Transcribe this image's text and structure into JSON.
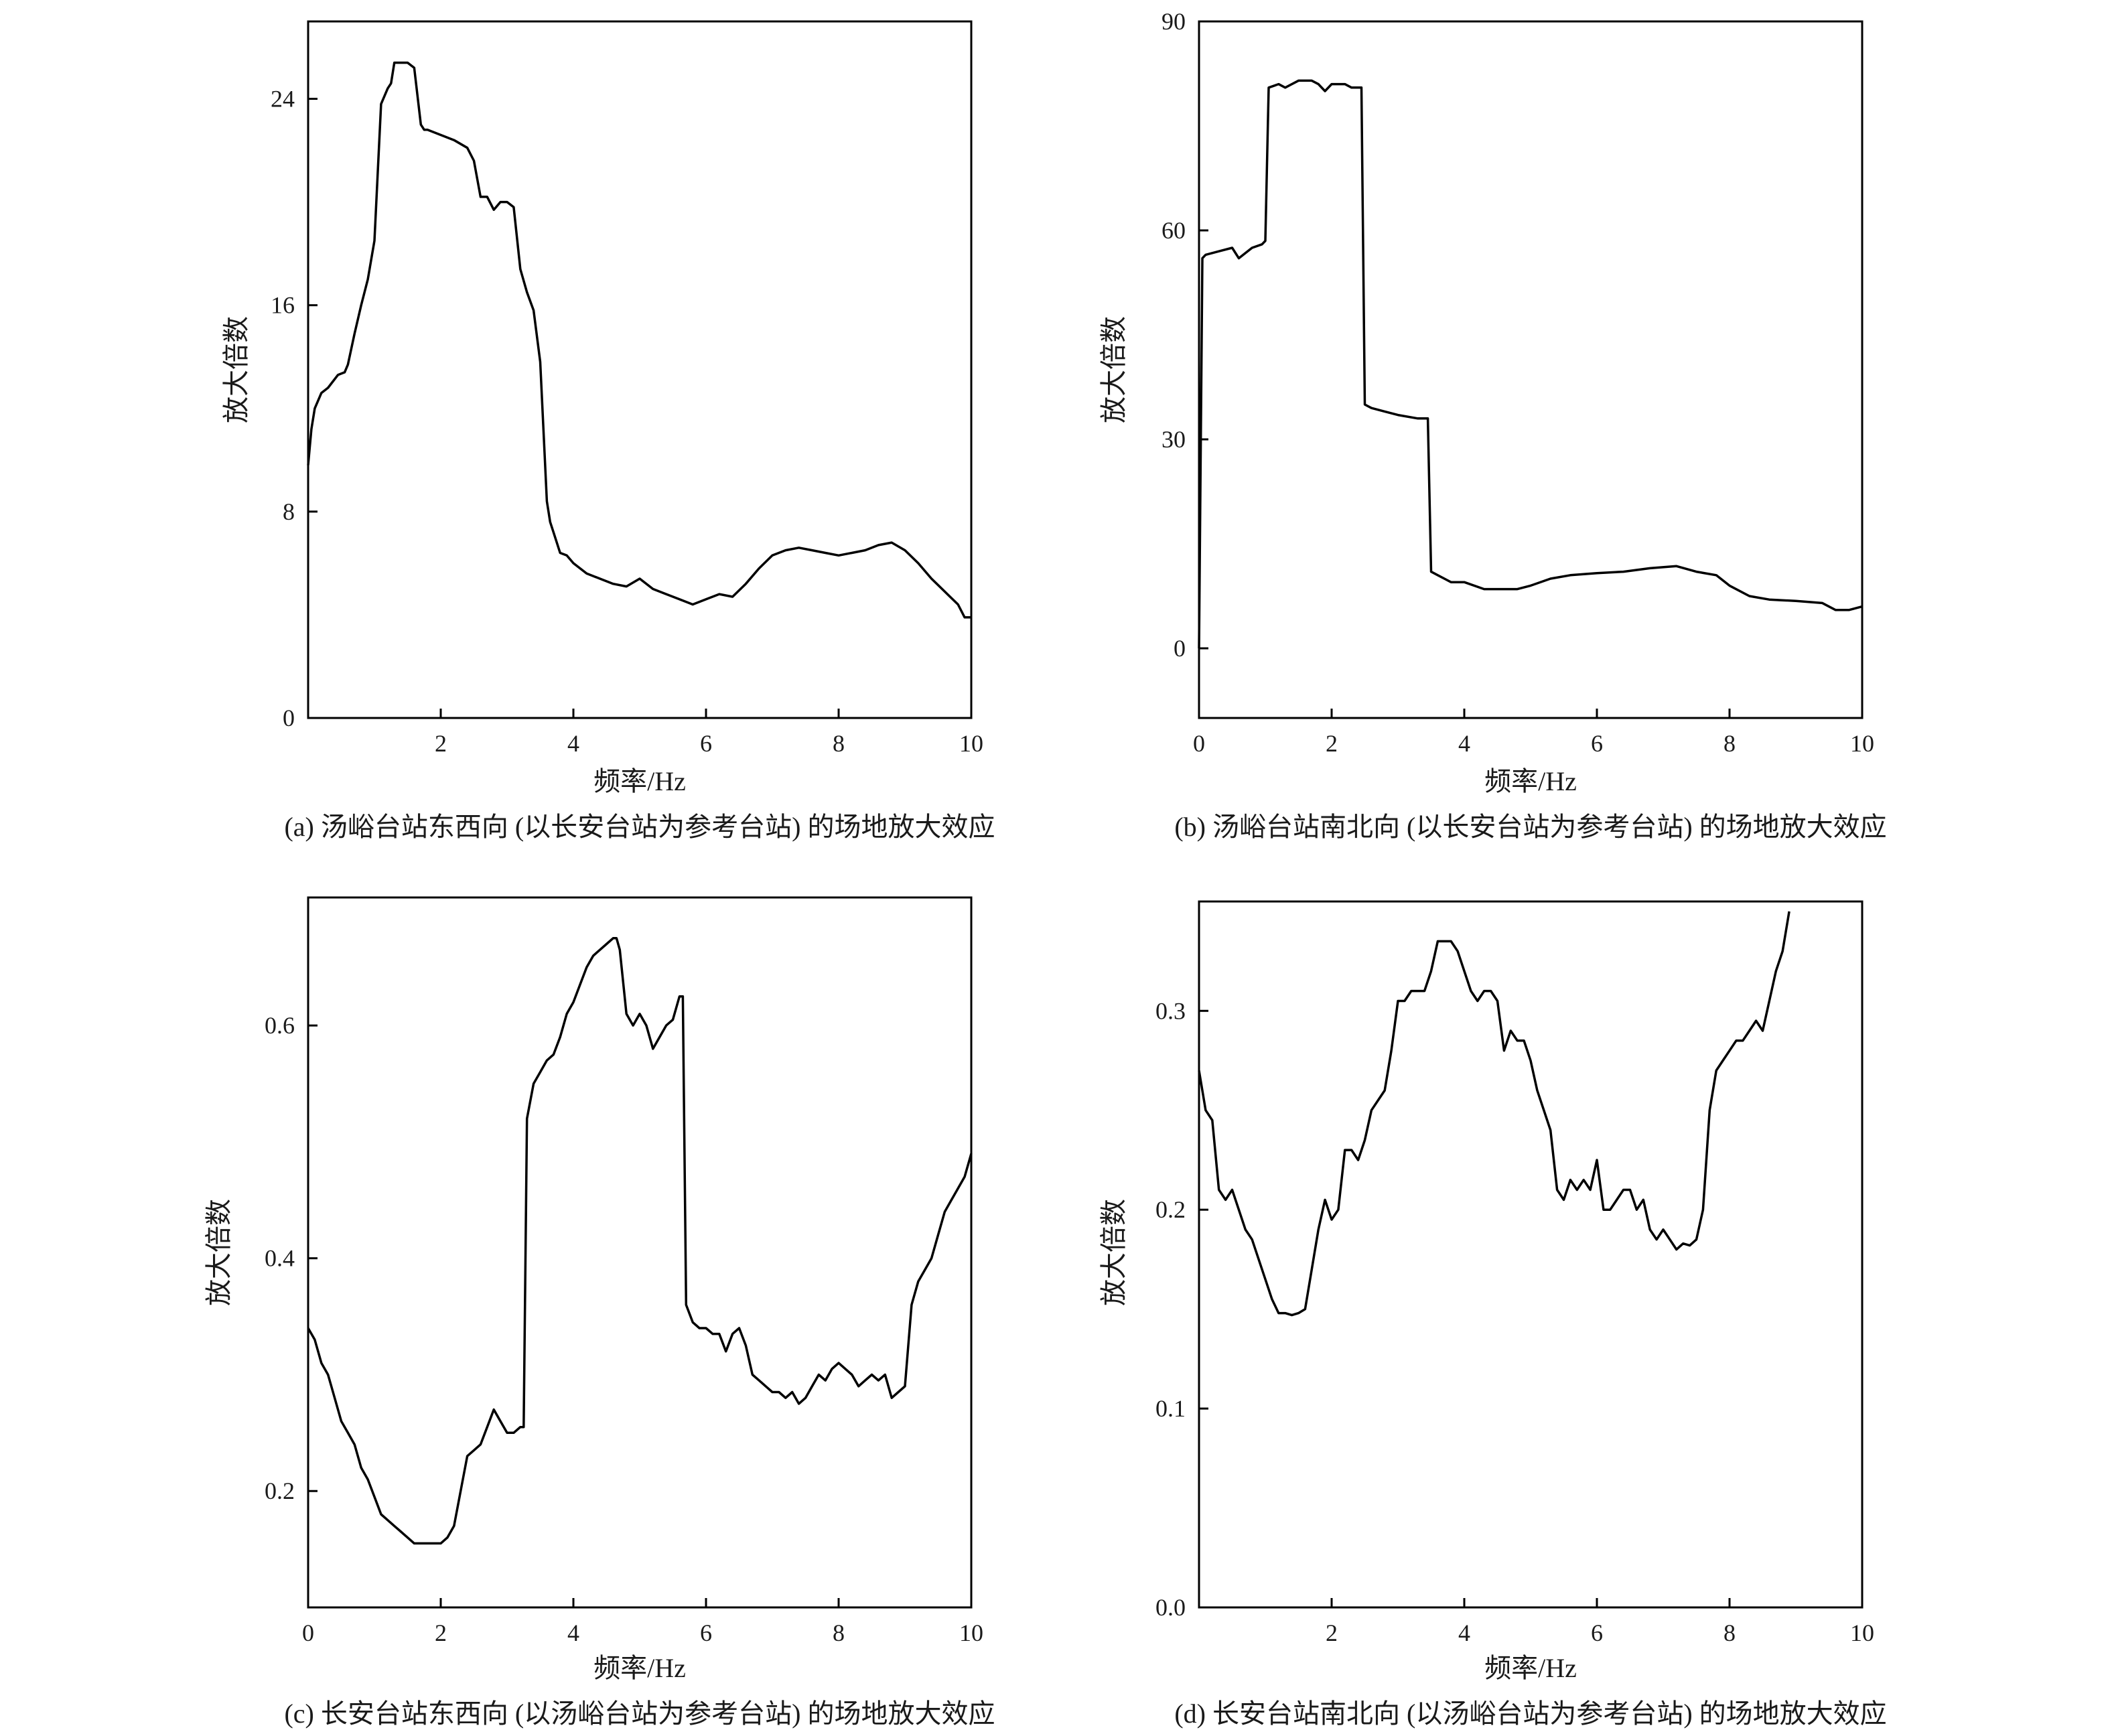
{
  "chart_data": [
    {
      "id": "a",
      "type": "line",
      "caption": "(a) 汤峪台站东西向 (以长安台站为参考台站) 的场地放大效应",
      "xlabel": "频率/Hz",
      "ylabel": "放大倍数",
      "xlim": [
        0,
        10
      ],
      "ylim": [
        0,
        27
      ],
      "xticks": [
        2,
        4,
        6,
        8,
        10
      ],
      "xtick_labels": [
        "2",
        "4",
        "6",
        "8",
        "10"
      ],
      "yticks": [
        0,
        8,
        16,
        24
      ],
      "ytick_labels": [
        "0",
        "8",
        "16",
        "24"
      ],
      "grid": false,
      "x": [
        0,
        0.05,
        0.1,
        0.2,
        0.3,
        0.45,
        0.55,
        0.6,
        0.7,
        0.8,
        0.9,
        1.0,
        1.1,
        1.2,
        1.25,
        1.3,
        1.4,
        1.5,
        1.6,
        1.7,
        1.75,
        1.8,
        2.0,
        2.2,
        2.4,
        2.5,
        2.6,
        2.7,
        2.8,
        2.9,
        3.0,
        3.1,
        3.2,
        3.3,
        3.4,
        3.5,
        3.6,
        3.65,
        3.7,
        3.8,
        3.9,
        4.0,
        4.2,
        4.4,
        4.6,
        4.8,
        5.0,
        5.2,
        5.4,
        5.6,
        5.8,
        6.0,
        6.2,
        6.4,
        6.6,
        6.8,
        7.0,
        7.2,
        7.4,
        7.6,
        7.8,
        8.0,
        8.2,
        8.4,
        8.6,
        8.8,
        9.0,
        9.2,
        9.4,
        9.6,
        9.8,
        9.9,
        10.0
      ],
      "y": [
        9.8,
        11.2,
        12.0,
        12.6,
        12.8,
        13.3,
        13.4,
        13.7,
        14.9,
        16.0,
        17.0,
        18.5,
        23.8,
        24.4,
        24.6,
        25.4,
        25.4,
        25.4,
        25.2,
        23.0,
        22.8,
        22.8,
        22.6,
        22.4,
        22.1,
        21.6,
        20.2,
        20.2,
        19.7,
        20.0,
        20.0,
        19.8,
        17.4,
        16.5,
        15.8,
        13.8,
        8.4,
        7.6,
        7.2,
        6.4,
        6.3,
        6.0,
        5.6,
        5.4,
        5.2,
        5.1,
        5.4,
        5.0,
        4.8,
        4.6,
        4.4,
        4.6,
        4.8,
        4.7,
        5.2,
        5.8,
        6.3,
        6.5,
        6.6,
        6.5,
        6.4,
        6.3,
        6.4,
        6.5,
        6.7,
        6.8,
        6.5,
        6.0,
        5.4,
        4.9,
        4.4,
        3.9,
        3.9
      ]
    },
    {
      "id": "b",
      "type": "line",
      "caption": "(b) 汤峪台站南北向 (以长安台站为参考台站) 的场地放大效应",
      "xlabel": "频率/Hz",
      "ylabel": "放大倍数",
      "xlim": [
        0,
        10
      ],
      "ylim": [
        -10,
        90
      ],
      "xticks": [
        0,
        2,
        4,
        6,
        8,
        10
      ],
      "xtick_labels": [
        "0",
        "2",
        "4",
        "6",
        "8",
        "10"
      ],
      "yticks": [
        0,
        30,
        60,
        90
      ],
      "ytick_labels": [
        "0",
        "30",
        "60",
        "90"
      ],
      "grid": false,
      "x": [
        0,
        0.05,
        0.1,
        0.3,
        0.5,
        0.6,
        0.8,
        0.95,
        1.0,
        1.05,
        1.2,
        1.3,
        1.5,
        1.7,
        1.8,
        1.9,
        2.0,
        2.2,
        2.3,
        2.45,
        2.5,
        2.6,
        2.8,
        3.0,
        3.3,
        3.45,
        3.5,
        3.6,
        3.8,
        4.0,
        4.3,
        4.5,
        4.8,
        5.0,
        5.3,
        5.6,
        6.0,
        6.4,
        6.8,
        7.2,
        7.5,
        7.8,
        8.0,
        8.3,
        8.6,
        9.0,
        9.4,
        9.6,
        9.8,
        10.0
      ],
      "y": [
        0,
        56,
        56.5,
        57.0,
        57.5,
        56.0,
        57.5,
        58.0,
        58.5,
        80.5,
        81.0,
        80.5,
        81.5,
        81.5,
        81.0,
        80.0,
        81.0,
        81.0,
        80.5,
        80.5,
        35.0,
        34.5,
        34.0,
        33.5,
        33.0,
        33.0,
        11.0,
        10.5,
        9.5,
        9.5,
        8.5,
        8.5,
        8.5,
        9.0,
        10.0,
        10.5,
        10.8,
        11.0,
        11.5,
        11.8,
        11.0,
        10.5,
        9.0,
        7.5,
        7.0,
        6.8,
        6.5,
        5.5,
        5.5,
        6.0
      ]
    },
    {
      "id": "c",
      "type": "line",
      "caption": "(c) 长安台站东西向 (以汤峪台站为参考台站) 的场地放大效应",
      "xlabel": "频率/Hz",
      "ylabel": "放大倍数",
      "xlim": [
        0,
        10
      ],
      "ylim": [
        0.1,
        0.71
      ],
      "xticks": [
        0,
        2,
        4,
        6,
        8,
        10
      ],
      "xtick_labels": [
        "0",
        "2",
        "4",
        "6",
        "8",
        "10"
      ],
      "yticks": [
        0.2,
        0.4,
        0.6
      ],
      "ytick_labels": [
        "0.2",
        "0.4",
        "0.6"
      ],
      "grid": false,
      "x": [
        0,
        0.1,
        0.2,
        0.3,
        0.4,
        0.5,
        0.6,
        0.7,
        0.8,
        0.9,
        1.0,
        1.1,
        1.2,
        1.3,
        1.4,
        1.5,
        1.6,
        1.7,
        1.8,
        1.9,
        2.0,
        2.1,
        2.2,
        2.3,
        2.4,
        2.5,
        2.6,
        2.7,
        2.8,
        2.9,
        3.0,
        3.1,
        3.2,
        3.25,
        3.3,
        3.4,
        3.5,
        3.6,
        3.7,
        3.8,
        3.9,
        4.0,
        4.1,
        4.2,
        4.3,
        4.4,
        4.5,
        4.6,
        4.65,
        4.7,
        4.8,
        4.9,
        5.0,
        5.1,
        5.2,
        5.3,
        5.4,
        5.5,
        5.6,
        5.65,
        5.7,
        5.8,
        5.9,
        6.0,
        6.1,
        6.2,
        6.3,
        6.4,
        6.5,
        6.6,
        6.7,
        6.8,
        6.9,
        7.0,
        7.1,
        7.2,
        7.3,
        7.4,
        7.5,
        7.6,
        7.7,
        7.8,
        7.9,
        8.0,
        8.1,
        8.2,
        8.3,
        8.4,
        8.5,
        8.6,
        8.7,
        8.8,
        8.9,
        9.0,
        9.1,
        9.2,
        9.3,
        9.4,
        9.5,
        9.6,
        9.7,
        9.8,
        9.9,
        10.0
      ],
      "y": [
        0.34,
        0.33,
        0.31,
        0.3,
        0.28,
        0.26,
        0.25,
        0.24,
        0.22,
        0.21,
        0.195,
        0.18,
        0.175,
        0.17,
        0.165,
        0.16,
        0.155,
        0.155,
        0.155,
        0.155,
        0.155,
        0.16,
        0.17,
        0.2,
        0.23,
        0.235,
        0.24,
        0.255,
        0.27,
        0.26,
        0.25,
        0.25,
        0.255,
        0.255,
        0.52,
        0.55,
        0.56,
        0.57,
        0.575,
        0.59,
        0.61,
        0.62,
        0.635,
        0.65,
        0.66,
        0.665,
        0.67,
        0.675,
        0.675,
        0.665,
        0.61,
        0.6,
        0.61,
        0.6,
        0.58,
        0.59,
        0.6,
        0.605,
        0.625,
        0.625,
        0.36,
        0.345,
        0.34,
        0.34,
        0.335,
        0.335,
        0.32,
        0.335,
        0.34,
        0.325,
        0.3,
        0.295,
        0.29,
        0.285,
        0.285,
        0.28,
        0.285,
        0.275,
        0.28,
        0.29,
        0.3,
        0.295,
        0.305,
        0.31,
        0.305,
        0.3,
        0.29,
        0.295,
        0.3,
        0.295,
        0.3,
        0.28,
        0.285,
        0.29,
        0.36,
        0.38,
        0.39,
        0.4,
        0.42,
        0.44,
        0.45,
        0.46,
        0.47,
        0.49
      ]
    },
    {
      "id": "d",
      "type": "line",
      "caption": "(d) 长安台站南北向 (以汤峪台站为参考台站) 的场地放大效应",
      "xlabel": "频率/Hz",
      "ylabel": "放大倍数",
      "xlim": [
        0,
        10
      ],
      "ylim": [
        0,
        0.355
      ],
      "xticks": [
        2,
        4,
        6,
        8,
        10
      ],
      "xtick_labels": [
        "2",
        "4",
        "6",
        "8",
        "10"
      ],
      "yticks": [
        0,
        0.1,
        0.2,
        0.3
      ],
      "ytick_labels": [
        "0.0",
        "0.1",
        "0.2",
        "0.3"
      ],
      "grid": false,
      "x": [
        0,
        0.1,
        0.2,
        0.3,
        0.4,
        0.5,
        0.6,
        0.7,
        0.8,
        0.9,
        1.0,
        1.1,
        1.2,
        1.3,
        1.4,
        1.5,
        1.6,
        1.7,
        1.8,
        1.9,
        2.0,
        2.1,
        2.2,
        2.3,
        2.4,
        2.5,
        2.6,
        2.7,
        2.8,
        2.9,
        3.0,
        3.1,
        3.2,
        3.3,
        3.4,
        3.5,
        3.6,
        3.7,
        3.8,
        3.9,
        4.0,
        4.1,
        4.2,
        4.3,
        4.4,
        4.5,
        4.6,
        4.7,
        4.8,
        4.9,
        5.0,
        5.1,
        5.2,
        5.3,
        5.4,
        5.5,
        5.6,
        5.7,
        5.8,
        5.9,
        6.0,
        6.1,
        6.2,
        6.3,
        6.4,
        6.5,
        6.6,
        6.7,
        6.8,
        6.9,
        7.0,
        7.1,
        7.2,
        7.3,
        7.4,
        7.5,
        7.6,
        7.7,
        7.8,
        7.9,
        8.0,
        8.1,
        8.2,
        8.3,
        8.4,
        8.5,
        8.6,
        8.7,
        8.8,
        8.9
      ],
      "y": [
        0.27,
        0.25,
        0.245,
        0.21,
        0.205,
        0.21,
        0.2,
        0.19,
        0.185,
        0.175,
        0.165,
        0.155,
        0.148,
        0.148,
        0.147,
        0.148,
        0.15,
        0.17,
        0.19,
        0.205,
        0.195,
        0.2,
        0.23,
        0.23,
        0.225,
        0.235,
        0.25,
        0.255,
        0.26,
        0.28,
        0.305,
        0.305,
        0.31,
        0.31,
        0.31,
        0.32,
        0.335,
        0.335,
        0.335,
        0.33,
        0.32,
        0.31,
        0.305,
        0.31,
        0.31,
        0.305,
        0.28,
        0.29,
        0.285,
        0.285,
        0.275,
        0.26,
        0.25,
        0.24,
        0.21,
        0.205,
        0.215,
        0.21,
        0.215,
        0.21,
        0.225,
        0.2,
        0.2,
        0.205,
        0.21,
        0.21,
        0.2,
        0.205,
        0.19,
        0.185,
        0.19,
        0.185,
        0.18,
        0.183,
        0.182,
        0.185,
        0.2,
        0.25,
        0.27,
        0.275,
        0.28,
        0.285,
        0.285,
        0.29,
        0.295,
        0.29,
        0.305,
        0.32,
        0.33,
        0.35
      ]
    }
  ]
}
